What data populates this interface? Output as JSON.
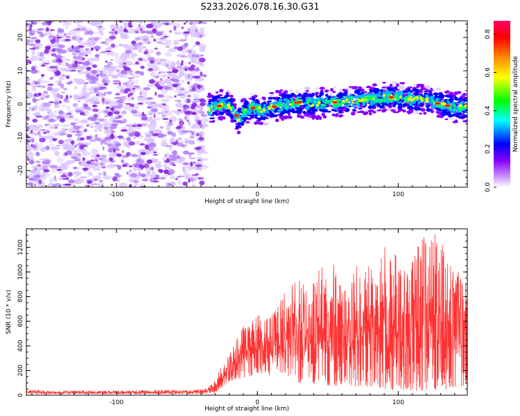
{
  "title": "S233.2026.078.16.30.G31",
  "chart_data": [
    {
      "type": "heatmap",
      "name": "spectrogram",
      "xlabel": "Height of straight line (km)",
      "ylabel": "Frequency (Hz)",
      "xlim": [
        -164,
        149
      ],
      "ylim": [
        -25,
        25
      ],
      "xticks": [
        -100,
        0,
        100
      ],
      "yticks": [
        -20,
        -10,
        0,
        10,
        20
      ],
      "noise_region_x": [
        -164,
        -37
      ],
      "signal_start_x": -37,
      "signal_ridge": {
        "x": [
          -37,
          -30,
          -22,
          -17,
          -13,
          -9,
          -5,
          0,
          5,
          10,
          15,
          20,
          30,
          40,
          50,
          60,
          70,
          80,
          90,
          100,
          110,
          120,
          130,
          140,
          149
        ],
        "y": [
          -2,
          -1,
          0,
          -2,
          -5,
          -2,
          -1,
          -1.5,
          -2,
          -1,
          -0.5,
          0,
          0.5,
          0,
          0.5,
          0.5,
          1,
          1.5,
          2,
          2,
          1.5,
          1,
          0,
          -1,
          -1
        ]
      },
      "colorbar": {
        "label": "Normalized spectral amplitude",
        "range": [
          0,
          0.87
        ],
        "ticks": [
          0.0,
          0.2,
          0.4,
          0.6,
          0.8
        ],
        "colors": [
          "#ffffff",
          "#8800ff",
          "#0000ff",
          "#00ffff",
          "#00ff00",
          "#ffff00",
          "#ff8800",
          "#ff0000",
          "#ff0066"
        ]
      }
    },
    {
      "type": "line",
      "name": "snr",
      "xlabel": "Height of straight line (km)",
      "ylabel": "SNR (10 * v/v)",
      "xlim": [
        -164,
        149
      ],
      "ylim": [
        0,
        1350
      ],
      "xticks": [
        -100,
        0,
        100
      ],
      "yticks": [
        0,
        200,
        400,
        600,
        800,
        1000,
        1200
      ],
      "color": "#ff3333",
      "series": [
        {
          "name": "SNR",
          "x": [
            -164,
            -150,
            -130,
            -110,
            -90,
            -70,
            -50,
            -38,
            -30,
            -25,
            -20,
            -15,
            -10,
            -5,
            0,
            5,
            10,
            15,
            20,
            25,
            30,
            35,
            40,
            45,
            50,
            55,
            60,
            65,
            70,
            75,
            80,
            85,
            90,
            95,
            100,
            105,
            110,
            115,
            120,
            125,
            130,
            135,
            140,
            145,
            149
          ],
          "y_low": [
            10,
            10,
            10,
            10,
            10,
            10,
            10,
            10,
            20,
            60,
            100,
            120,
            140,
            150,
            180,
            170,
            150,
            160,
            170,
            120,
            100,
            110,
            90,
            100,
            80,
            70,
            90,
            80,
            70,
            80,
            60,
            70,
            50,
            40,
            50,
            40,
            30,
            40,
            30,
            40,
            50,
            40,
            60,
            70,
            80
          ],
          "y_high": [
            50,
            35,
            40,
            35,
            40,
            45,
            40,
            50,
            120,
            250,
            320,
            480,
            560,
            600,
            700,
            650,
            640,
            760,
            850,
            900,
            950,
            880,
            920,
            1080,
            1000,
            1100,
            900,
            950,
            1050,
            1000,
            1100,
            1000,
            1230,
            1100,
            1200,
            1000,
            1150,
            1250,
            1300,
            1360,
            1280,
            1150,
            1000,
            1000,
            880
          ]
        }
      ]
    }
  ]
}
